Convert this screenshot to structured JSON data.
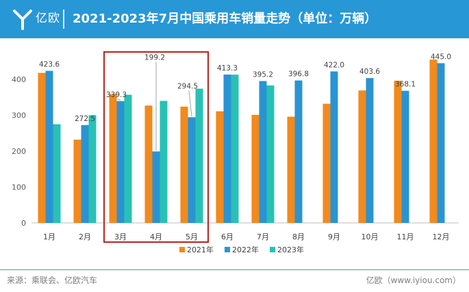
{
  "header": {
    "logo_text": "亿欧",
    "title": "2021-2023年7月中国乘用车销量走势（单位：万辆）"
  },
  "footer": {
    "source": "来源：乘联会、亿欧汽车",
    "brand": "亿欧（www.iyiou.com）"
  },
  "colors": {
    "header_bg": "#2897d6",
    "series_2021": "#f28a1d",
    "series_2022": "#2a94d3",
    "series_2023": "#28c1b5",
    "highlight_box": "#b3261e"
  },
  "chart_data": {
    "type": "bar",
    "title": "2021-2023年7月中国乘用车销量走势（单位：万辆）",
    "categories": [
      "1月",
      "2月",
      "3月",
      "4月",
      "5月",
      "6月",
      "7月",
      "8月",
      "9月",
      "10月",
      "11月",
      "12月"
    ],
    "series": [
      {
        "name": "2021年",
        "color": "#f28a1d",
        "values": [
          418,
          232,
          359,
          327,
          324,
          311,
          301,
          296,
          332,
          369,
          396,
          455
        ]
      },
      {
        "name": "2022年",
        "color": "#2a94d3",
        "values": [
          423.6,
          272.5,
          339.3,
          199.2,
          294.5,
          413.3,
          395.2,
          396.8,
          422.0,
          403.6,
          368.1,
          445.0
        ]
      },
      {
        "name": "2023年",
        "color": "#28c1b5",
        "values": [
          275,
          300,
          357,
          340,
          374,
          413,
          383,
          null,
          null,
          null,
          null,
          null
        ]
      }
    ],
    "data_labels": [
      {
        "category": "1月",
        "text": "423.6"
      },
      {
        "category": "2月",
        "text": "272.5"
      },
      {
        "category": "3月",
        "text": "339.3"
      },
      {
        "category": "4月",
        "text": "199.2"
      },
      {
        "category": "5月",
        "text": "294.5"
      },
      {
        "category": "6月",
        "text": "413.3"
      },
      {
        "category": "7月",
        "text": "395.2"
      },
      {
        "category": "8月",
        "text": "396.8"
      },
      {
        "category": "9月",
        "text": "422.0"
      },
      {
        "category": "10月",
        "text": "403.6"
      },
      {
        "category": "11月",
        "text": "368.1"
      },
      {
        "category": "12月",
        "text": "445.0"
      }
    ],
    "yticks": [
      "0",
      "100",
      "200",
      "300",
      "400"
    ],
    "ylim": [
      0,
      500
    ],
    "xlabel": "",
    "ylabel": "",
    "grid": false,
    "legend": "bottom-center",
    "highlight": {
      "from": "3月",
      "to": "5月"
    }
  }
}
